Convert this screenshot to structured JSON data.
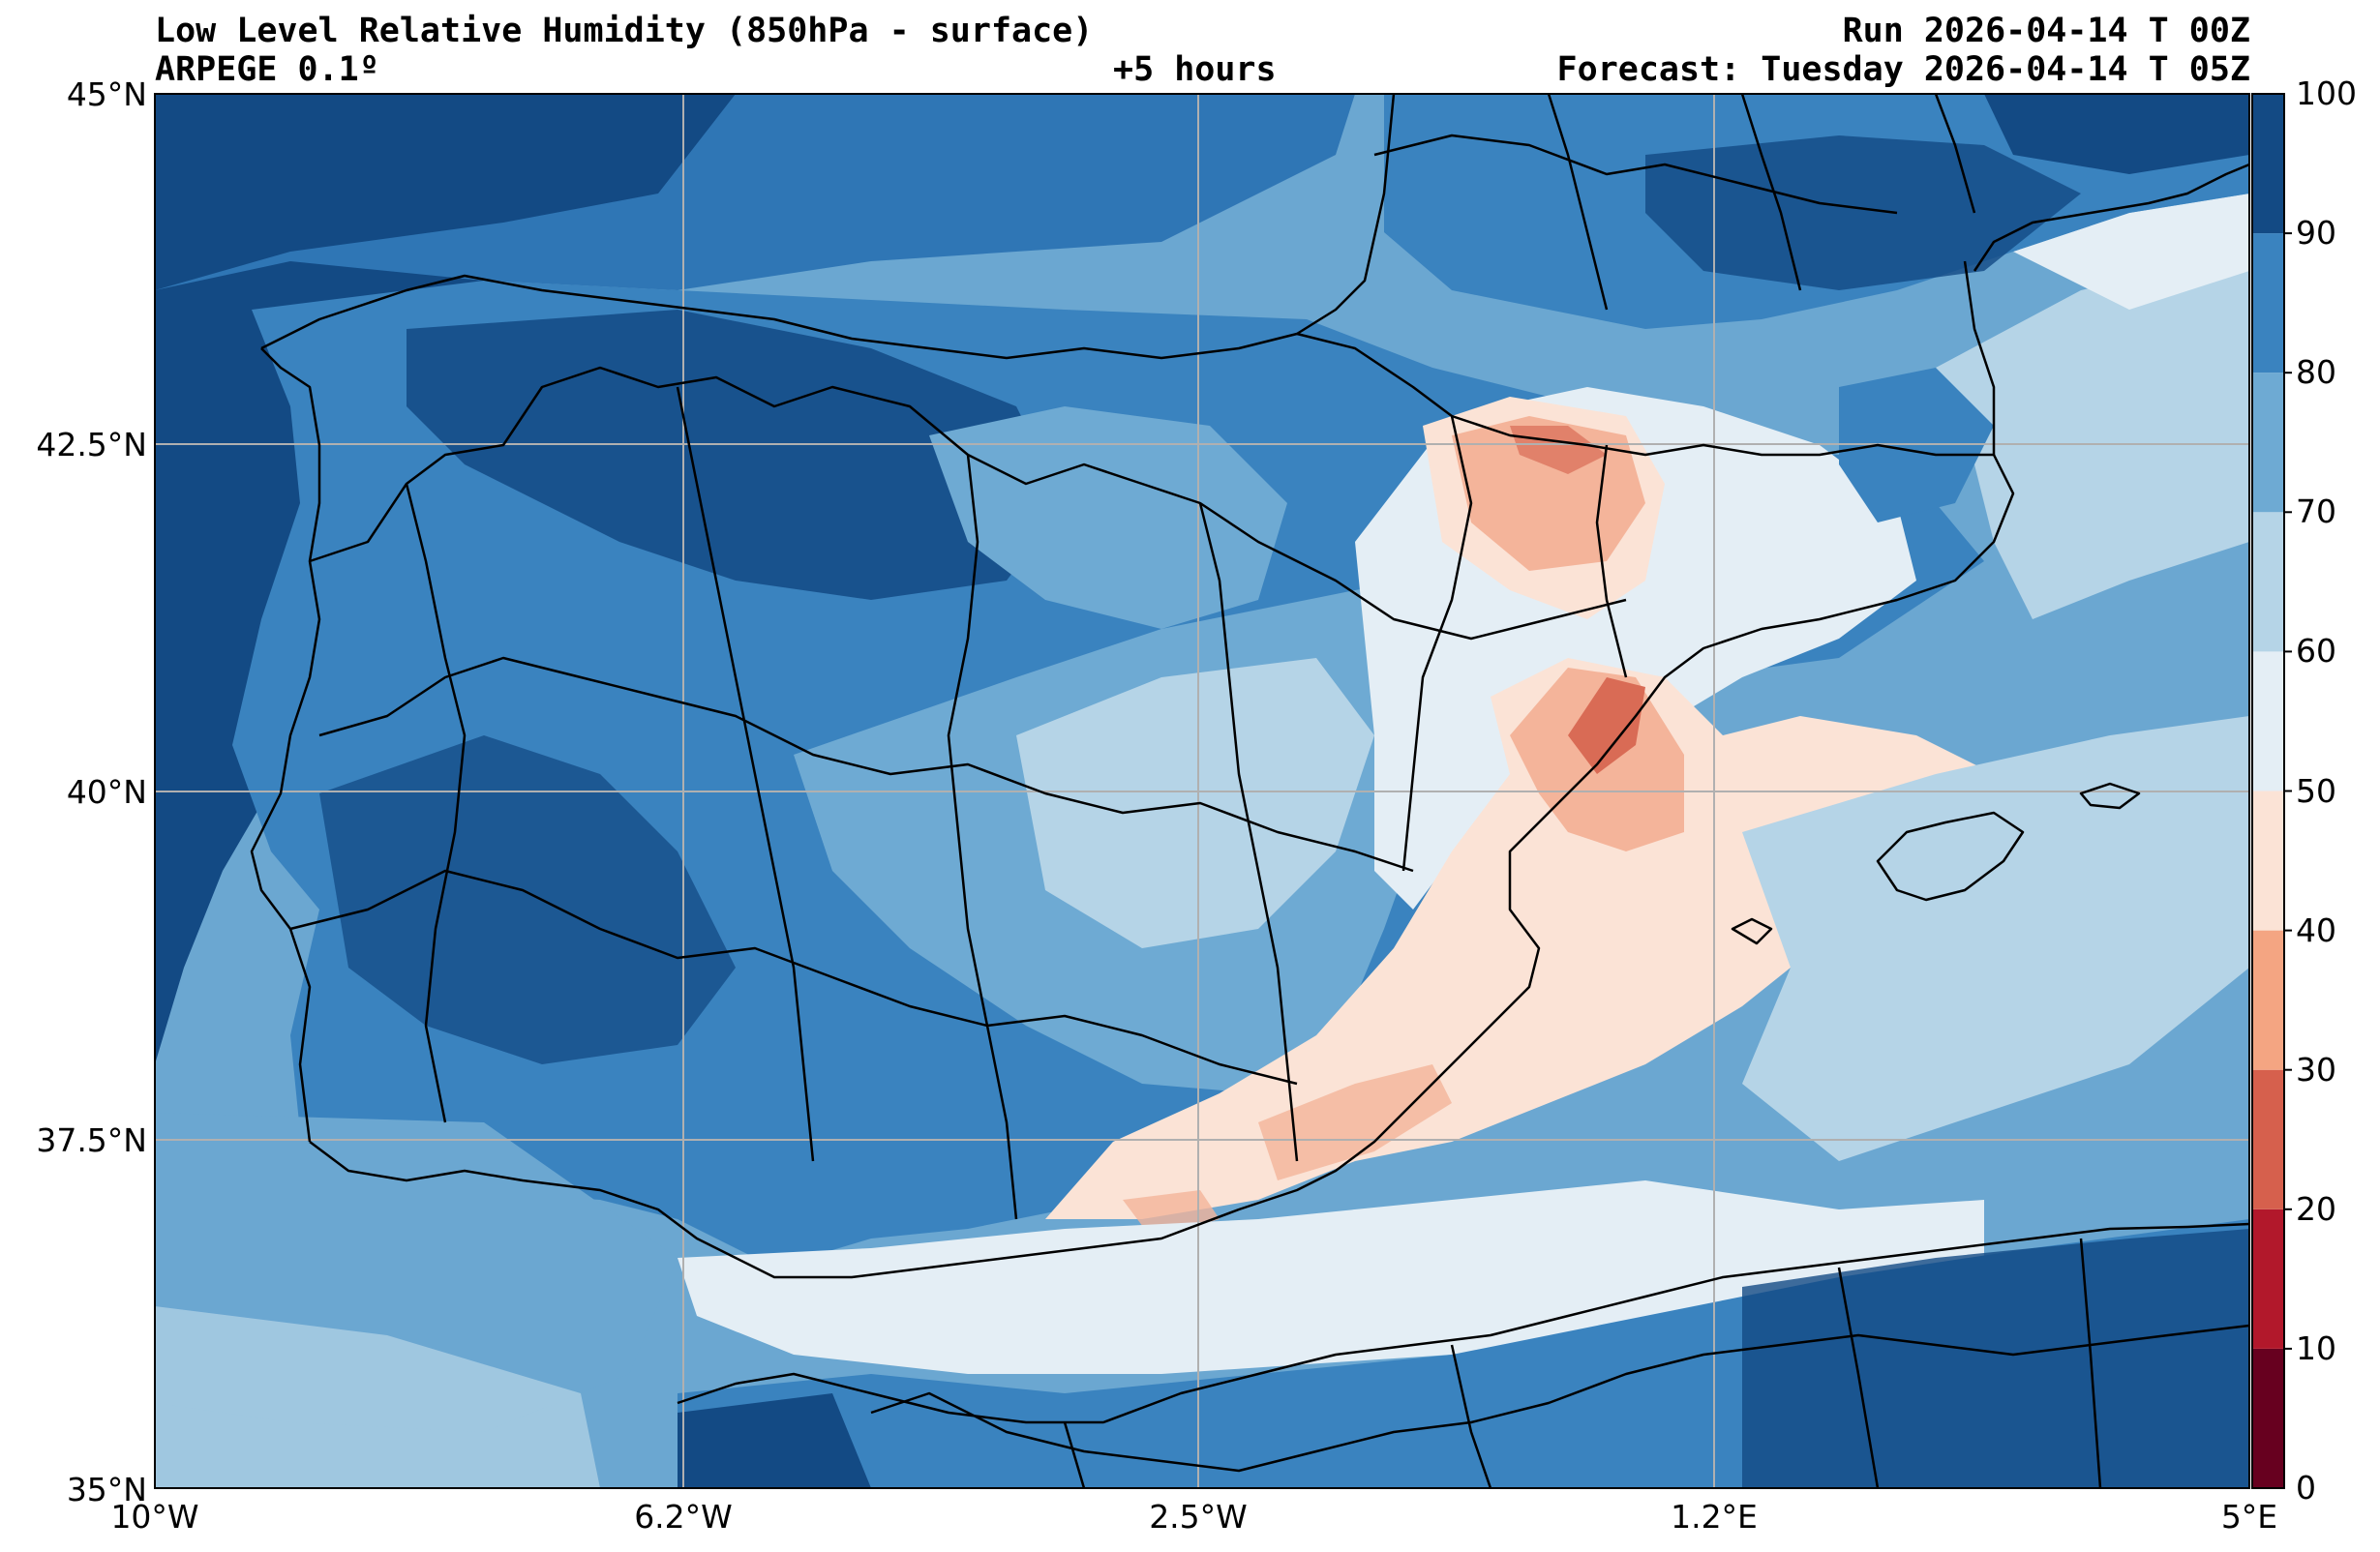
{
  "header": {
    "title": "Low Level Relative Humidity (850hPa - surface)",
    "model": "ARPEGE 0.1º",
    "lead_time": "+5 hours",
    "run": "Run 2026-04-14 T 00Z",
    "forecast": "Forecast: Tuesday 2026-04-14 T 05Z"
  },
  "axes": {
    "lat_labels": [
      "45°N",
      "42.5°N",
      "40°N",
      "37.5°N",
      "35°N"
    ],
    "lon_labels": [
      "10°W",
      "6.2°W",
      "2.5°W",
      "1.2°E",
      "5°E"
    ]
  },
  "colorbar": {
    "levels": [
      "0",
      "10",
      "20",
      "30",
      "40",
      "50",
      "60",
      "70",
      "80",
      "90",
      "100"
    ],
    "colors": [
      "#67001f",
      "#b2182b",
      "#d6604d",
      "#f4a582",
      "#fbe3d6",
      "#e4eef5",
      "#b5d4e7",
      "#6eaad3",
      "#3a83bf",
      "#134a84"
    ]
  },
  "palette": {
    "sea": "#6ba7d1",
    "very_humid": "#134a84",
    "humid": "#2f76b5",
    "moist": "#6eaad3",
    "moderate": "#b5d4e7",
    "dry_light": "#e4eef5",
    "dry": "#fbe3d6",
    "drier": "#f4b49a",
    "driest": "#d96b55",
    "grid": "#b0b0b0",
    "border": "#000000"
  }
}
